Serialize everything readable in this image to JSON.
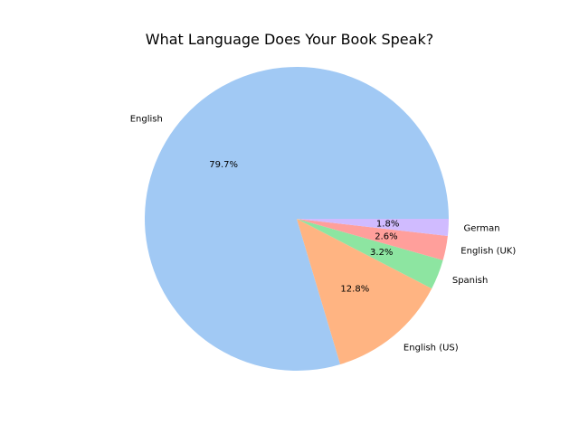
{
  "chart_data": {
    "type": "pie",
    "title": "What Language Does Your Book Speak?",
    "categories": [
      "English",
      "English (US)",
      "Spanish",
      "English (UK)",
      "German"
    ],
    "values": [
      79.7,
      12.8,
      3.2,
      2.6,
      1.8
    ],
    "value_labels": [
      "79.7%",
      "12.8%",
      "3.2%",
      "2.6%",
      "1.8%"
    ],
    "colors": [
      "#a1c9f4",
      "#ffb482",
      "#8de5a1",
      "#ff9f9b",
      "#d0bbff"
    ],
    "start_angle_deg": 0,
    "direction": "counterclockwise",
    "legend": "none"
  }
}
